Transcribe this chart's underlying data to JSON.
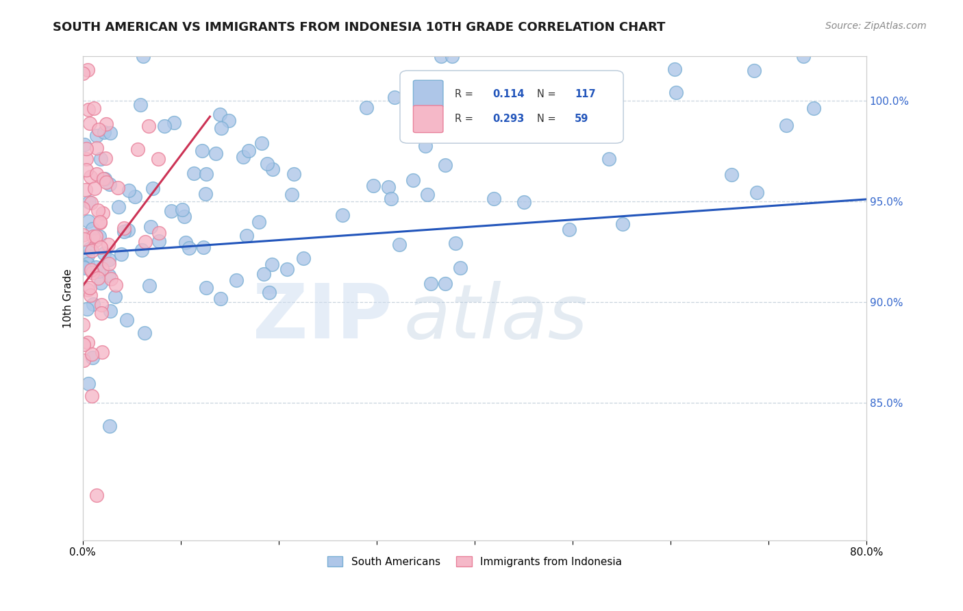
{
  "title": "SOUTH AMERICAN VS IMMIGRANTS FROM INDONESIA 10TH GRADE CORRELATION CHART",
  "source": "Source: ZipAtlas.com",
  "ylabel": "10th Grade",
  "xlim": [
    0.0,
    0.8
  ],
  "ylim": [
    0.782,
    1.022
  ],
  "xticks": [
    0.0,
    0.1,
    0.2,
    0.3,
    0.4,
    0.5,
    0.6,
    0.7,
    0.8
  ],
  "xticklabels": [
    "0.0%",
    "",
    "",
    "",
    "",
    "",
    "",
    "",
    "80.0%"
  ],
  "yticks": [
    0.85,
    0.9,
    0.95,
    1.0
  ],
  "yticklabels": [
    "85.0%",
    "90.0%",
    "95.0%",
    "100.0%"
  ],
  "blue_color": "#aec6e8",
  "blue_edge_color": "#7aafd4",
  "pink_color": "#f5b8c8",
  "pink_edge_color": "#e8809a",
  "blue_line_color": "#2255bb",
  "pink_line_color": "#cc3355",
  "R_blue": 0.114,
  "N_blue": 117,
  "R_pink": 0.293,
  "N_pink": 59,
  "background_color": "#ffffff",
  "grid_color": "#c8d4de",
  "title_fontsize": 13,
  "source_fontsize": 10,
  "seed": 42,
  "blue_trend_x": [
    0.0,
    0.8
  ],
  "blue_trend_y": [
    0.924,
    0.951
  ],
  "pink_trend_x": [
    0.0,
    0.13
  ],
  "pink_trend_y": [
    0.908,
    0.992
  ]
}
